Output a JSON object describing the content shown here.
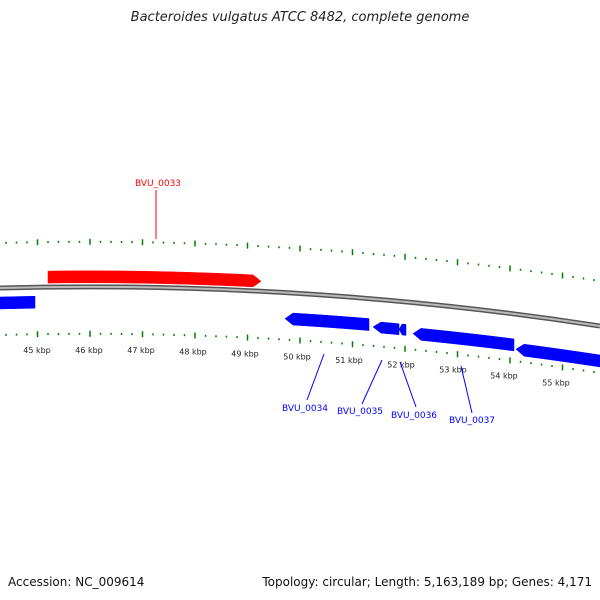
{
  "title": "Bacteroides vulgatus ATCC 8482, complete genome",
  "footer": {
    "accession": "Accession: NC_009614",
    "stats": "Topology: circular; Length: 5,163,189 bp; Genes: 4,171"
  },
  "colors": {
    "forward_gene": "#ff0000",
    "reverse_gene": "#0000ff",
    "ticks": "#008000",
    "backbone": "#888888"
  },
  "scale_labels": [
    "45 kbp",
    "46 kbp",
    "47 kbp",
    "48 kbp",
    "49 kbp",
    "50 kbp",
    "51 kbp",
    "52 kbp",
    "53 kbp",
    "54 kbp",
    "55 kbp"
  ],
  "genes": [
    {
      "id": "BVU_0033",
      "strand": "forward"
    },
    {
      "id": "BVU_0034",
      "strand": "reverse"
    },
    {
      "id": "BVU_0035",
      "strand": "reverse"
    },
    {
      "id": "BVU_0036",
      "strand": "reverse"
    },
    {
      "id": "BVU_0037",
      "strand": "reverse"
    }
  ]
}
